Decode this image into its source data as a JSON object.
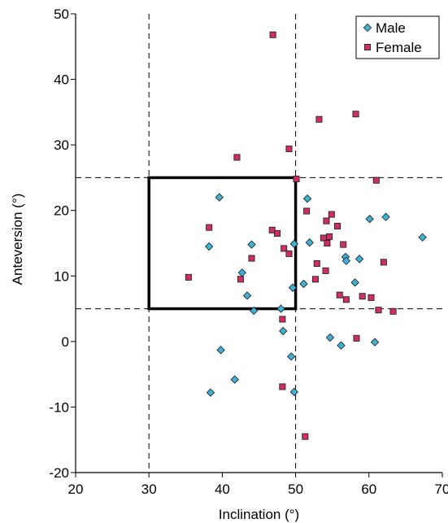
{
  "chart_data": {
    "type": "scatter",
    "xlabel": "Inclination (°)",
    "ylabel": "Anteversion (°)",
    "xlim": [
      20,
      70
    ],
    "ylim": [
      -20,
      50
    ],
    "xticks": [
      20,
      30,
      40,
      50,
      60,
      70
    ],
    "yticks": [
      -20,
      -10,
      0,
      10,
      20,
      30,
      40,
      50
    ],
    "grid": false,
    "legend_position": "top-right",
    "reference_lines": {
      "x": [
        30,
        50
      ],
      "y": [
        5,
        25
      ]
    },
    "safe_zone": {
      "x": [
        30,
        50
      ],
      "y": [
        5,
        25
      ]
    },
    "series": [
      {
        "name": "Male",
        "marker": "diamond",
        "color": "#3fb0d6",
        "points": [
          [
            39.6,
            22.0
          ],
          [
            38.2,
            14.5
          ],
          [
            42.7,
            10.5
          ],
          [
            43.4,
            7.0
          ],
          [
            44.0,
            14.8
          ],
          [
            44.3,
            4.7
          ],
          [
            39.8,
            -1.3
          ],
          [
            38.4,
            -7.8
          ],
          [
            41.7,
            -5.8
          ],
          [
            48.0,
            5.0
          ],
          [
            48.3,
            1.6
          ],
          [
            49.4,
            -2.3
          ],
          [
            49.8,
            -7.7
          ],
          [
            49.6,
            8.2
          ],
          [
            49.8,
            14.9
          ],
          [
            51.1,
            8.8
          ],
          [
            51.6,
            21.8
          ],
          [
            51.9,
            15.1
          ],
          [
            54.7,
            0.6
          ],
          [
            56.2,
            -0.6
          ],
          [
            56.8,
            12.9
          ],
          [
            56.9,
            12.3
          ],
          [
            58.1,
            9.0
          ],
          [
            58.7,
            12.6
          ],
          [
            60.1,
            18.7
          ],
          [
            60.8,
            -0.1
          ],
          [
            62.3,
            19.0
          ],
          [
            67.3,
            15.9
          ]
        ]
      },
      {
        "name": "Female",
        "marker": "square",
        "color": "#cc2f66",
        "points": [
          [
            46.9,
            46.8
          ],
          [
            42.0,
            28.1
          ],
          [
            49.1,
            29.4
          ],
          [
            53.2,
            33.9
          ],
          [
            58.2,
            34.7
          ],
          [
            50.1,
            24.8
          ],
          [
            61.0,
            24.6
          ],
          [
            38.2,
            17.4
          ],
          [
            35.4,
            9.8
          ],
          [
            42.5,
            9.5
          ],
          [
            44.0,
            12.7
          ],
          [
            46.8,
            17.0
          ],
          [
            47.5,
            16.5
          ],
          [
            48.4,
            14.2
          ],
          [
            49.1,
            13.4
          ],
          [
            51.5,
            19.9
          ],
          [
            52.7,
            9.5
          ],
          [
            52.9,
            11.9
          ],
          [
            53.8,
            15.8
          ],
          [
            54.2,
            18.4
          ],
          [
            54.3,
            15.0
          ],
          [
            54.6,
            16.0
          ],
          [
            54.9,
            19.4
          ],
          [
            54.1,
            10.8
          ],
          [
            55.7,
            17.6
          ],
          [
            56.5,
            14.8
          ],
          [
            56.0,
            7.1
          ],
          [
            56.9,
            6.4
          ],
          [
            59.1,
            6.9
          ],
          [
            60.3,
            6.7
          ],
          [
            61.3,
            4.8
          ],
          [
            62.0,
            12.1
          ],
          [
            63.3,
            4.6
          ],
          [
            48.2,
            3.4
          ],
          [
            48.2,
            -6.9
          ],
          [
            58.3,
            0.5
          ],
          [
            51.3,
            -14.5
          ]
        ]
      }
    ]
  }
}
